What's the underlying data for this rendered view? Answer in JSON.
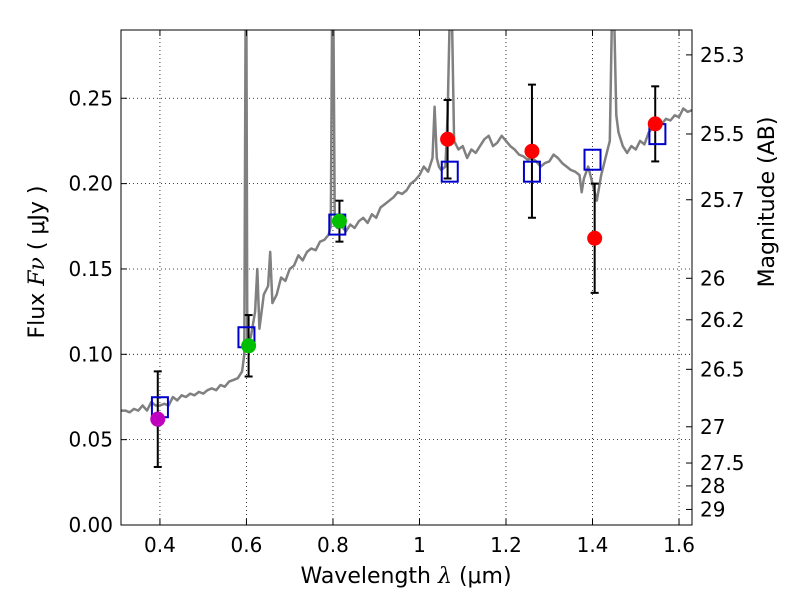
{
  "chart_data": {
    "type": "scatter",
    "xlabel": {
      "prefix": "Wavelength",
      "symbol": "λ",
      "unit": "(μm)"
    },
    "ylabel": {
      "prefix": "Flux",
      "symbol": "Fν",
      "unit": "( μJy )"
    },
    "y2label": "Magnitude (AB)",
    "xlim": [
      0.31,
      1.63
    ],
    "ylim": [
      0.0,
      0.29
    ],
    "xticks": [
      {
        "value": 0.4,
        "label": "0.4"
      },
      {
        "value": 0.6,
        "label": "0.6"
      },
      {
        "value": 0.8,
        "label": "0.8"
      },
      {
        "value": 1.0,
        "label": "1"
      },
      {
        "value": 1.2,
        "label": "1.2"
      },
      {
        "value": 1.4,
        "label": "1.4"
      },
      {
        "value": 1.6,
        "label": "1.6"
      }
    ],
    "yticks": [
      {
        "value": 0.0,
        "label": "0.00"
      },
      {
        "value": 0.05,
        "label": "0.05"
      },
      {
        "value": 0.1,
        "label": "0.10"
      },
      {
        "value": 0.15,
        "label": "0.15"
      },
      {
        "value": 0.2,
        "label": "0.20"
      },
      {
        "value": 0.25,
        "label": "0.25"
      }
    ],
    "y2ticks": [
      {
        "mag": 25.3,
        "label": "25.3"
      },
      {
        "mag": 25.5,
        "label": "25.5"
      },
      {
        "mag": 25.7,
        "label": "25.7"
      },
      {
        "mag": 26.0,
        "label": "26"
      },
      {
        "mag": 26.2,
        "label": "26.2"
      },
      {
        "mag": 26.5,
        "label": "26.5"
      },
      {
        "mag": 27.0,
        "label": "27"
      },
      {
        "mag": 27.5,
        "label": "27.5"
      },
      {
        "mag": 28.0,
        "label": "28"
      },
      {
        "mag": 29.0,
        "label": "29"
      }
    ],
    "grid": true,
    "series": [
      {
        "kind": "spectrum",
        "color": "#808080",
        "points": [
          [
            0.31,
            0.067
          ],
          [
            0.32,
            0.067
          ],
          [
            0.33,
            0.066
          ],
          [
            0.34,
            0.068
          ],
          [
            0.35,
            0.067
          ],
          [
            0.36,
            0.07
          ],
          [
            0.37,
            0.067
          ],
          [
            0.38,
            0.072
          ],
          [
            0.39,
            0.07
          ],
          [
            0.4,
            0.07
          ],
          [
            0.41,
            0.071
          ],
          [
            0.42,
            0.07
          ],
          [
            0.43,
            0.075
          ],
          [
            0.44,
            0.073
          ],
          [
            0.45,
            0.076
          ],
          [
            0.46,
            0.075
          ],
          [
            0.47,
            0.077
          ],
          [
            0.48,
            0.076
          ],
          [
            0.49,
            0.078
          ],
          [
            0.5,
            0.077
          ],
          [
            0.51,
            0.079
          ],
          [
            0.52,
            0.08
          ],
          [
            0.53,
            0.079
          ],
          [
            0.54,
            0.082
          ],
          [
            0.55,
            0.081
          ],
          [
            0.56,
            0.084
          ],
          [
            0.57,
            0.085
          ],
          [
            0.58,
            0.086
          ],
          [
            0.59,
            0.09
          ],
          [
            0.595,
            0.1
          ],
          [
            0.598,
            0.3
          ],
          [
            0.6,
            0.3
          ],
          [
            0.602,
            0.108
          ],
          [
            0.61,
            0.11
          ],
          [
            0.62,
            0.125
          ],
          [
            0.625,
            0.15
          ],
          [
            0.63,
            0.115
          ],
          [
            0.64,
            0.135
          ],
          [
            0.65,
            0.14
          ],
          [
            0.655,
            0.16
          ],
          [
            0.66,
            0.13
          ],
          [
            0.67,
            0.135
          ],
          [
            0.675,
            0.14
          ],
          [
            0.68,
            0.145
          ],
          [
            0.69,
            0.143
          ],
          [
            0.7,
            0.15
          ],
          [
            0.71,
            0.152
          ],
          [
            0.72,
            0.158
          ],
          [
            0.73,
            0.155
          ],
          [
            0.74,
            0.16
          ],
          [
            0.75,
            0.162
          ],
          [
            0.76,
            0.161
          ],
          [
            0.77,
            0.166
          ],
          [
            0.78,
            0.167
          ],
          [
            0.79,
            0.17
          ],
          [
            0.795,
            0.175
          ],
          [
            0.798,
            0.3
          ],
          [
            0.801,
            0.3
          ],
          [
            0.804,
            0.182
          ],
          [
            0.81,
            0.174
          ],
          [
            0.82,
            0.175
          ],
          [
            0.83,
            0.172
          ],
          [
            0.84,
            0.176
          ],
          [
            0.85,
            0.174
          ],
          [
            0.86,
            0.178
          ],
          [
            0.87,
            0.18
          ],
          [
            0.88,
            0.177
          ],
          [
            0.89,
            0.182
          ],
          [
            0.9,
            0.18
          ],
          [
            0.91,
            0.186
          ],
          [
            0.92,
            0.188
          ],
          [
            0.93,
            0.19
          ],
          [
            0.94,
            0.192
          ],
          [
            0.95,
            0.195
          ],
          [
            0.96,
            0.194
          ],
          [
            0.97,
            0.196
          ],
          [
            0.98,
            0.2
          ],
          [
            0.99,
            0.202
          ],
          [
            1.0,
            0.205
          ],
          [
            1.01,
            0.21
          ],
          [
            1.02,
            0.207
          ],
          [
            1.03,
            0.215
          ],
          [
            1.035,
            0.245
          ],
          [
            1.04,
            0.215
          ],
          [
            1.045,
            0.21
          ],
          [
            1.05,
            0.208
          ],
          [
            1.06,
            0.21
          ],
          [
            1.065,
            0.24
          ],
          [
            1.07,
            0.3
          ],
          [
            1.075,
            0.3
          ],
          [
            1.08,
            0.225
          ],
          [
            1.09,
            0.22
          ],
          [
            1.1,
            0.222
          ],
          [
            1.11,
            0.215
          ],
          [
            1.12,
            0.22
          ],
          [
            1.13,
            0.218
          ],
          [
            1.14,
            0.222
          ],
          [
            1.15,
            0.226
          ],
          [
            1.16,
            0.228
          ],
          [
            1.17,
            0.222
          ],
          [
            1.18,
            0.224
          ],
          [
            1.19,
            0.228
          ],
          [
            1.2,
            0.225
          ],
          [
            1.21,
            0.222
          ],
          [
            1.22,
            0.22
          ],
          [
            1.23,
            0.217
          ],
          [
            1.24,
            0.216
          ],
          [
            1.25,
            0.214
          ],
          [
            1.26,
            0.215
          ],
          [
            1.27,
            0.213
          ],
          [
            1.28,
            0.21
          ],
          [
            1.29,
            0.212
          ],
          [
            1.3,
            0.213
          ],
          [
            1.31,
            0.217
          ],
          [
            1.32,
            0.215
          ],
          [
            1.33,
            0.212
          ],
          [
            1.34,
            0.21
          ],
          [
            1.35,
            0.208
          ],
          [
            1.36,
            0.207
          ],
          [
            1.37,
            0.205
          ],
          [
            1.375,
            0.195
          ],
          [
            1.38,
            0.203
          ],
          [
            1.39,
            0.21
          ],
          [
            1.4,
            0.2
          ],
          [
            1.41,
            0.19
          ],
          [
            1.42,
            0.205
          ],
          [
            1.43,
            0.215
          ],
          [
            1.44,
            0.225
          ],
          [
            1.445,
            0.3
          ],
          [
            1.45,
            0.3
          ],
          [
            1.455,
            0.24
          ],
          [
            1.46,
            0.23
          ],
          [
            1.47,
            0.222
          ],
          [
            1.48,
            0.218
          ],
          [
            1.49,
            0.222
          ],
          [
            1.5,
            0.22
          ],
          [
            1.51,
            0.225
          ],
          [
            1.52,
            0.223
          ],
          [
            1.53,
            0.23
          ],
          [
            1.54,
            0.233
          ],
          [
            1.55,
            0.232
          ],
          [
            1.56,
            0.235
          ],
          [
            1.57,
            0.238
          ],
          [
            1.58,
            0.237
          ],
          [
            1.59,
            0.24
          ],
          [
            1.6,
            0.239
          ],
          [
            1.61,
            0.244
          ],
          [
            1.62,
            0.242
          ],
          [
            1.63,
            0.243
          ]
        ]
      },
      {
        "kind": "model_photometry",
        "marker": "open-square",
        "color": "#0000cc",
        "points": [
          {
            "x": 0.4,
            "y": 0.069
          },
          {
            "x": 0.6,
            "y": 0.11
          },
          {
            "x": 0.81,
            "y": 0.176
          },
          {
            "x": 1.07,
            "y": 0.207
          },
          {
            "x": 1.26,
            "y": 0.207
          },
          {
            "x": 1.4,
            "y": 0.214
          },
          {
            "x": 1.55,
            "y": 0.229
          }
        ]
      },
      {
        "kind": "observed",
        "marker": "filled-circle",
        "points": [
          {
            "x": 0.395,
            "y": 0.062,
            "err": 0.028,
            "color": "#bf00bf"
          },
          {
            "x": 0.605,
            "y": 0.105,
            "err": 0.018,
            "color": "#00bf00"
          },
          {
            "x": 0.815,
            "y": 0.178,
            "err": 0.012,
            "color": "#00bf00"
          },
          {
            "x": 1.065,
            "y": 0.226,
            "err": 0.023,
            "color": "#ff0000"
          },
          {
            "x": 1.26,
            "y": 0.219,
            "err": 0.039,
            "color": "#ff0000"
          },
          {
            "x": 1.405,
            "y": 0.168,
            "err": 0.032,
            "color": "#ff0000"
          },
          {
            "x": 1.545,
            "y": 0.235,
            "err": 0.022,
            "color": "#ff0000"
          }
        ]
      }
    ]
  }
}
